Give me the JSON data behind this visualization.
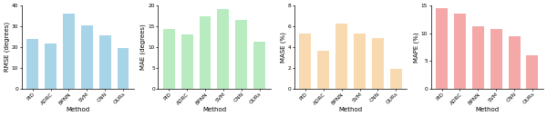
{
  "categories": [
    "PID",
    "ADRC",
    "BPNN",
    "SVM",
    "CNN",
    "OURs"
  ],
  "chart1": {
    "values": [
      24.0,
      21.5,
      36.0,
      30.5,
      25.5,
      19.5
    ],
    "ylabel": "RMSE (degrees)",
    "ylim": [
      0,
      40
    ],
    "yticks": [
      0,
      10,
      20,
      30,
      40
    ],
    "color": "#a8d4e8"
  },
  "chart2": {
    "values": [
      14.3,
      13.0,
      17.5,
      19.2,
      16.6,
      11.2
    ],
    "ylabel": "MAE (degrees)",
    "ylim": [
      0,
      20
    ],
    "yticks": [
      0,
      5,
      10,
      15,
      20
    ],
    "color": "#b8ecc0"
  },
  "chart3": {
    "values": [
      5.3,
      3.6,
      6.3,
      5.3,
      4.9,
      1.9
    ],
    "ylabel": "MASE (%)",
    "ylim": [
      0,
      8
    ],
    "yticks": [
      0,
      2,
      4,
      6,
      8
    ],
    "color": "#f9d9b0"
  },
  "chart4": {
    "values": [
      14.5,
      13.5,
      11.2,
      10.7,
      9.5,
      6.0
    ],
    "ylabel": "MAPE (%)",
    "ylim": [
      0,
      15
    ],
    "yticks": [
      0,
      5,
      10,
      15
    ],
    "color": "#f4a8a8"
  },
  "xlabel": "Method",
  "label_fontsize": 5.0,
  "tick_fontsize": 4.2,
  "bar_width": 0.65
}
